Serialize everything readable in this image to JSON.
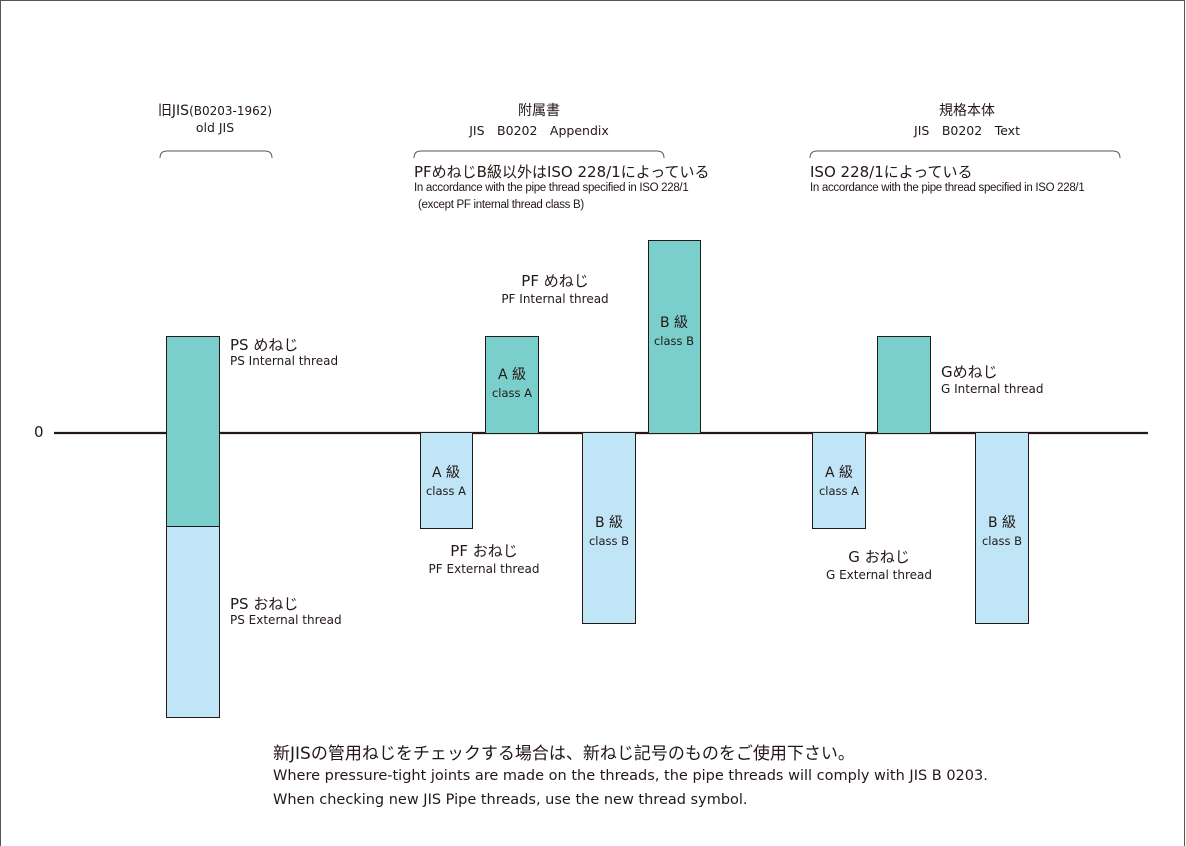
{
  "colors": {
    "internal": "#7acfcd",
    "external": "#bfe5f7",
    "line": "#231815"
  },
  "axis": {
    "zero_label": "0"
  },
  "sections": {
    "old": {
      "title_ja": "旧JIS",
      "title_suffix": "(B0203-1962)",
      "title_en": "old JIS"
    },
    "appendix": {
      "title_ja": "附属書",
      "title_en": "JIS　B0202　Appendix",
      "note_ja": "PFめねじB級以外はISO 228/1によっている",
      "note_en1": "In accordance with the pipe thread specified in ISO 228/1",
      "note_en2": "(except  PF  internal  thread  class  B)"
    },
    "text": {
      "title_ja": "規格本体",
      "title_en": "JIS　B0202　Text",
      "note_ja": "ISO 228/1によっている",
      "note_en": "In accordance with the pipe thread specified in ISO 228/1"
    }
  },
  "labels": {
    "ps_int_ja": "PS めねじ",
    "ps_int_en": "PS  Internal  thread",
    "ps_ext_ja": "PS おねじ",
    "ps_ext_en": "PS  External  thread",
    "pf_int_ja": "PF めねじ",
    "pf_int_en": "PF  Internal  thread",
    "pf_ext_ja": "PF おねじ",
    "pf_ext_en": "PF  External  thread",
    "g_int_ja": "Gめねじ",
    "g_int_en": "G  Internal  thread",
    "g_ext_ja": "G おねじ",
    "g_ext_en": "G  External  thread",
    "class_a_ja": "A 級",
    "class_a_en": "class A",
    "class_b_ja": "B 級",
    "class_b_en": "class B"
  },
  "footer": {
    "ja": "新JISの管用ねじをチェックする場合は、新ねじ記号のものをご使用下さい。",
    "en1": "Where pressure-tight joints are made on the threads, the pipe threads will comply with JIS B 0203.",
    "en2": "When checking new JIS Pipe threads, use the new thread symbol."
  }
}
